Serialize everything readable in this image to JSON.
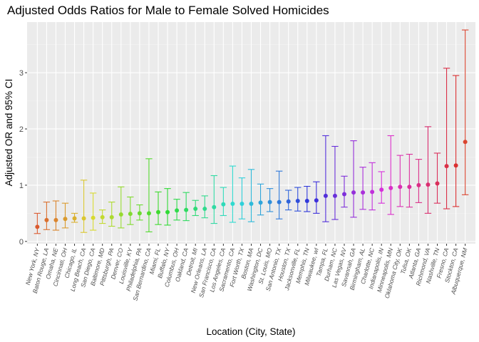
{
  "chart_data": {
    "type": "scatter",
    "subtype": "point-with-errorbars",
    "title": "Adjusted Odds Ratios for Male to Female Solved Homicides",
    "xlabel": "Location (City, State)",
    "ylabel": "Adjusted OR and 95% CI",
    "ylim": [
      -0.04,
      3.9
    ],
    "yticks": [
      "0",
      "1",
      "2",
      "3"
    ],
    "grid": true,
    "legend": "none",
    "background": "#ebebeb",
    "categories": [
      "New York, NY",
      "Baton Rouge, LA",
      "Omaha, NE",
      "Cincinnati, OH",
      "Chicago, IL",
      "Long Beach, CA",
      "San Diego, CA",
      "Baltimore, MD",
      "Pittsburgh, PA",
      "Denver, CO",
      "Louisville, KY",
      "Philadelphia, PA",
      "San Bernardino, CA",
      "Miami, FL",
      "Buffalo, NY",
      "Columbus, OH",
      "Oakland, CA",
      "Detroit, MI",
      "New Orleans, LA",
      "San Francisco, CA",
      "Los Angeles, CA",
      "Sacramento, CA",
      "Fort Worth, TX",
      "Boston, MA",
      "Washington, DC",
      "St. Louis, MO",
      "San Antonio, TX",
      "Houston, TX",
      "Jacksonville, FL",
      "Memphis, TN",
      "Milwaukee, wI",
      "Tampa, FL",
      "Durham, NC",
      "Las Vegas, NV",
      "Savannah, GA",
      "Birmingham, AL",
      "Charlotte, NC",
      "Indianapolis, IN",
      "Minneapolis, MN",
      "Oklahoma City, OK",
      "Tulsa, OK",
      "Atlanta, GA",
      "Richmond, VA",
      "Nashville, TN",
      "Fresno, CA",
      "Stockton, CA",
      "Albuquerque, NM"
    ],
    "or": [
      0.26,
      0.38,
      0.38,
      0.4,
      0.41,
      0.41,
      0.42,
      0.43,
      0.43,
      0.48,
      0.49,
      0.5,
      0.5,
      0.52,
      0.52,
      0.55,
      0.56,
      0.58,
      0.58,
      0.61,
      0.66,
      0.67,
      0.67,
      0.67,
      0.69,
      0.7,
      0.7,
      0.71,
      0.72,
      0.72,
      0.73,
      0.81,
      0.81,
      0.84,
      0.87,
      0.87,
      0.88,
      0.92,
      0.95,
      0.97,
      0.97,
      1.0,
      1.01,
      1.03,
      1.34,
      1.35,
      1.77
    ],
    "ci_low": [
      0.14,
      0.21,
      0.2,
      0.24,
      0.34,
      0.16,
      0.2,
      0.32,
      0.27,
      0.24,
      0.3,
      0.38,
      0.17,
      0.3,
      0.29,
      0.38,
      0.37,
      0.46,
      0.42,
      0.32,
      0.46,
      0.34,
      0.4,
      0.35,
      0.47,
      0.53,
      0.4,
      0.56,
      0.54,
      0.53,
      0.5,
      0.35,
      0.39,
      0.61,
      0.43,
      0.57,
      0.56,
      0.68,
      0.48,
      0.62,
      0.61,
      0.69,
      0.5,
      0.68,
      0.58,
      0.62,
      0.83
    ],
    "ci_high": [
      0.5,
      0.7,
      0.72,
      0.68,
      0.5,
      1.09,
      0.86,
      0.56,
      0.7,
      0.97,
      0.79,
      0.65,
      1.47,
      0.88,
      0.94,
      0.75,
      0.87,
      0.73,
      0.81,
      1.17,
      0.96,
      1.34,
      1.13,
      1.28,
      1.02,
      0.94,
      1.25,
      0.91,
      0.96,
      0.98,
      1.06,
      1.88,
      1.69,
      1.16,
      1.79,
      1.32,
      1.4,
      1.24,
      1.88,
      1.53,
      1.55,
      1.46,
      2.04,
      1.57,
      3.08,
      2.95,
      3.76
    ]
  }
}
